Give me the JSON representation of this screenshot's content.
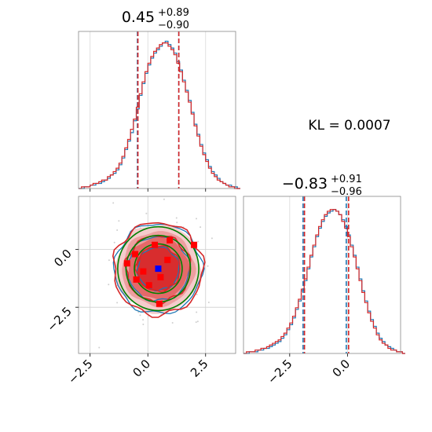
{
  "chart_data": {
    "type": "corner",
    "colors": {
      "series_a": "#1f77b4",
      "series_b": "#d62728",
      "gaussian": "#008000",
      "truth": "#0000ff",
      "samples": "#ff0000"
    },
    "annotation": "KL = 0.0007",
    "param1": {
      "title_center": "0.45",
      "title_plus": "+0.89",
      "title_minus": "−0.90",
      "xlim": [
        -3.0,
        3.8
      ],
      "quantiles_a": [
        -0.45,
        1.34
      ],
      "quantiles_b": [
        -0.43,
        1.34
      ],
      "bin_width": 0.125,
      "hist_a": [
        0,
        0,
        1,
        1,
        2,
        2,
        3,
        3,
        4,
        5,
        6,
        8,
        9,
        11,
        14,
        18,
        23,
        28,
        33,
        40,
        47,
        55,
        62,
        68,
        73,
        77,
        80,
        82,
        84,
        86,
        87,
        85,
        83,
        80,
        75,
        70,
        64,
        58,
        52,
        45,
        38,
        32,
        26,
        21,
        17,
        13,
        10,
        8,
        6,
        4,
        3,
        2,
        2,
        1,
        1,
        0
      ],
      "hist_b": [
        0,
        1,
        1,
        1,
        2,
        3,
        3,
        4,
        5,
        5,
        7,
        8,
        10,
        12,
        15,
        19,
        24,
        29,
        35,
        41,
        48,
        56,
        63,
        69,
        74,
        78,
        81,
        83,
        85,
        86,
        86,
        84,
        82,
        79,
        74,
        69,
        63,
        57,
        51,
        44,
        37,
        31,
        25,
        20,
        16,
        12,
        9,
        7,
        5,
        4,
        3,
        2,
        1,
        1,
        0,
        0
      ]
    },
    "param2": {
      "title_center": "−0.83",
      "title_plus": "+0.91",
      "title_minus": "−0.96",
      "xlim": [
        -4.5,
        2.3
      ],
      "quantiles_a": [
        -1.92,
        -0.05
      ],
      "quantiles_b": [
        -1.86,
        0.05
      ],
      "bin_width": 0.125,
      "hist_a": [
        0,
        0,
        1,
        1,
        1,
        2,
        2,
        3,
        3,
        4,
        5,
        6,
        7,
        9,
        11,
        14,
        17,
        21,
        26,
        31,
        37,
        43,
        50,
        57,
        63,
        69,
        74,
        78,
        81,
        83,
        84,
        85,
        84,
        82,
        79,
        75,
        70,
        64,
        58,
        51,
        44,
        37,
        31,
        25,
        20,
        16,
        12,
        9,
        7,
        5,
        4,
        3,
        2,
        1,
        1,
        0
      ],
      "hist_b": [
        0,
        1,
        1,
        1,
        2,
        2,
        3,
        3,
        4,
        5,
        6,
        7,
        8,
        10,
        12,
        15,
        18,
        22,
        27,
        32,
        38,
        44,
        51,
        58,
        64,
        70,
        75,
        79,
        82,
        84,
        85,
        85,
        84,
        82,
        78,
        74,
        69,
        63,
        57,
        50,
        43,
        36,
        30,
        24,
        19,
        15,
        11,
        8,
        6,
        5,
        3,
        2,
        2,
        1,
        1,
        0
      ]
    },
    "joint": {
      "xlim": [
        -3.0,
        3.8
      ],
      "ylim": [
        -4.5,
        2.3
      ],
      "mean": [
        0.45,
        -0.83
      ],
      "sigma": [
        0.9,
        0.93
      ],
      "truth_point": [
        0.45,
        -0.83
      ],
      "red_points": [
        [
          -0.55,
          -0.2
        ],
        [
          0.3,
          0.2
        ],
        [
          0.95,
          0.4
        ],
        [
          2.0,
          0.2
        ],
        [
          -0.9,
          -0.6
        ],
        [
          0.85,
          -0.45
        ],
        [
          -0.2,
          -0.95
        ],
        [
          -0.5,
          -1.3
        ],
        [
          0.55,
          -1.2
        ],
        [
          0.05,
          -1.55
        ],
        [
          0.5,
          -2.35
        ]
      ]
    },
    "xticks_bottom1": [
      "−2.5",
      "0.0",
      "2.5"
    ],
    "xticks_bottom1_values": [
      -2.5,
      0.0,
      2.5
    ],
    "yticks_joint": [
      "0.0",
      "−2.5"
    ],
    "yticks_joint_values": [
      0.0,
      -2.5
    ],
    "xticks_bottom2": [
      "−2.5",
      "0.0"
    ],
    "xticks_bottom2_values": [
      -2.5,
      0.0
    ]
  }
}
